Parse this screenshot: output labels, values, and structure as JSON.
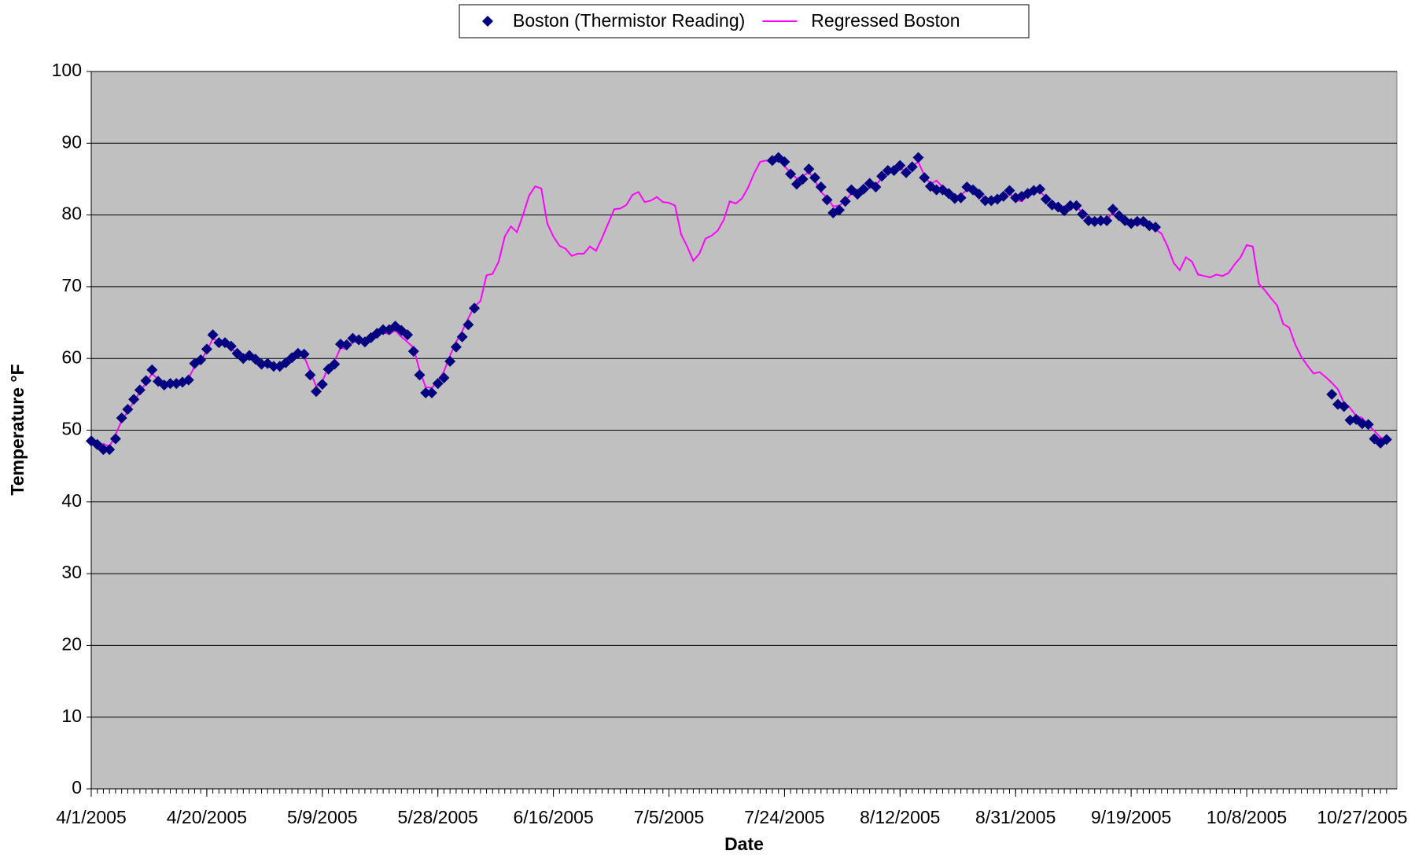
{
  "chart_data": {
    "type": "line",
    "xlabel": "Date",
    "ylabel": "Temperature °F",
    "x": [
      "4/1/2005",
      "4/2/2005",
      "4/3/2005",
      "4/4/2005",
      "4/5/2005",
      "4/6/2005",
      "4/7/2005",
      "4/8/2005",
      "4/9/2005",
      "4/10/2005",
      "4/11/2005",
      "4/12/2005",
      "4/13/2005",
      "4/14/2005",
      "4/15/2005",
      "4/16/2005",
      "4/17/2005",
      "4/18/2005",
      "4/19/2005",
      "4/20/2005",
      "4/21/2005",
      "4/22/2005",
      "4/23/2005",
      "4/24/2005",
      "4/25/2005",
      "4/26/2005",
      "4/27/2005",
      "4/28/2005",
      "4/29/2005",
      "4/30/2005",
      "5/1/2005",
      "5/2/2005",
      "5/3/2005",
      "5/4/2005",
      "5/5/2005",
      "5/6/2005",
      "5/7/2005",
      "5/8/2005",
      "5/9/2005",
      "5/10/2005",
      "5/11/2005",
      "5/12/2005",
      "5/13/2005",
      "5/14/2005",
      "5/15/2005",
      "5/16/2005",
      "5/17/2005",
      "5/18/2005",
      "5/19/2005",
      "5/20/2005",
      "5/21/2005",
      "5/22/2005",
      "5/23/2005",
      "5/24/2005",
      "5/25/2005",
      "5/26/2005",
      "5/27/2005",
      "5/28/2005",
      "5/29/2005",
      "5/30/2005",
      "5/31/2005",
      "6/1/2005",
      "6/2/2005",
      "6/3/2005",
      "6/4/2005",
      "6/5/2005",
      "6/6/2005",
      "6/7/2005",
      "6/8/2005",
      "6/9/2005",
      "6/10/2005",
      "6/11/2005",
      "6/12/2005",
      "6/13/2005",
      "6/14/2005",
      "6/15/2005",
      "6/16/2005",
      "6/17/2005",
      "6/18/2005",
      "6/19/2005",
      "6/20/2005",
      "6/21/2005",
      "6/22/2005",
      "6/23/2005",
      "6/24/2005",
      "6/25/2005",
      "6/26/2005",
      "6/27/2005",
      "6/28/2005",
      "6/29/2005",
      "6/30/2005",
      "7/1/2005",
      "7/2/2005",
      "7/3/2005",
      "7/4/2005",
      "7/5/2005",
      "7/6/2005",
      "7/7/2005",
      "7/8/2005",
      "7/9/2005",
      "7/10/2005",
      "7/11/2005",
      "7/12/2005",
      "7/13/2005",
      "7/14/2005",
      "7/15/2005",
      "7/16/2005",
      "7/17/2005",
      "7/18/2005",
      "7/19/2005",
      "7/20/2005",
      "7/21/2005",
      "7/22/2005",
      "7/23/2005",
      "7/24/2005",
      "7/25/2005",
      "7/26/2005",
      "7/27/2005",
      "7/28/2005",
      "7/29/2005",
      "7/30/2005",
      "7/31/2005",
      "8/1/2005",
      "8/2/2005",
      "8/3/2005",
      "8/4/2005",
      "8/5/2005",
      "8/6/2005",
      "8/7/2005",
      "8/8/2005",
      "8/9/2005",
      "8/10/2005",
      "8/11/2005",
      "8/12/2005",
      "8/13/2005",
      "8/14/2005",
      "8/15/2005",
      "8/16/2005",
      "8/17/2005",
      "8/18/2005",
      "8/19/2005",
      "8/20/2005",
      "8/21/2005",
      "8/22/2005",
      "8/23/2005",
      "8/24/2005",
      "8/25/2005",
      "8/26/2005",
      "8/27/2005",
      "8/28/2005",
      "8/29/2005",
      "8/30/2005",
      "8/31/2005",
      "9/1/2005",
      "9/2/2005",
      "9/3/2005",
      "9/4/2005",
      "9/5/2005",
      "9/6/2005",
      "9/7/2005",
      "9/8/2005",
      "9/9/2005",
      "9/10/2005",
      "9/11/2005",
      "9/12/2005",
      "9/13/2005",
      "9/14/2005",
      "9/15/2005",
      "9/16/2005",
      "9/17/2005",
      "9/18/2005",
      "9/19/2005",
      "9/20/2005",
      "9/21/2005",
      "9/22/2005",
      "9/23/2005",
      "9/24/2005",
      "9/25/2005",
      "9/26/2005",
      "9/27/2005",
      "9/28/2005",
      "9/29/2005",
      "9/30/2005",
      "10/1/2005",
      "10/2/2005",
      "10/3/2005",
      "10/4/2005",
      "10/5/2005",
      "10/6/2005",
      "10/7/2005",
      "10/8/2005",
      "10/9/2005",
      "10/10/2005",
      "10/11/2005",
      "10/12/2005",
      "10/13/2005",
      "10/14/2005",
      "10/15/2005",
      "10/16/2005",
      "10/17/2005",
      "10/18/2005",
      "10/19/2005",
      "10/20/2005",
      "10/21/2005",
      "10/22/2005",
      "10/23/2005",
      "10/24/2005",
      "10/25/2005",
      "10/26/2005",
      "10/27/2005",
      "10/28/2005",
      "10/29/2005",
      "10/30/2005",
      "10/31/2005"
    ],
    "xticks": [
      "4/1/2005",
      "4/20/2005",
      "5/9/2005",
      "5/28/2005",
      "6/16/2005",
      "7/5/2005",
      "7/24/2005",
      "8/12/2005",
      "8/31/2005",
      "9/19/2005",
      "10/8/2005",
      "10/27/2005"
    ],
    "series": [
      {
        "name": "Boston (Thermistor Reading)",
        "color": "#000080",
        "marker": "diamond",
        "values": [
          48.5,
          48,
          47.3,
          47.3,
          48.8,
          51.7,
          52.9,
          54.3,
          55.6,
          56.9,
          58.4,
          56.8,
          56.3,
          56.5,
          56.5,
          56.7,
          57,
          59.3,
          59.8,
          61.3,
          63.3,
          62.2,
          62.2,
          61.7,
          60.7,
          60,
          60.4,
          59.9,
          59.2,
          59.3,
          58.9,
          58.9,
          59.4,
          60.1,
          60.7,
          60.6,
          57.7,
          55.4,
          56.4,
          58.5,
          59.2,
          62,
          61.9,
          62.8,
          62.6,
          62.3,
          62.9,
          63.5,
          64,
          64,
          64.5,
          63.9,
          63.3,
          61,
          57.7,
          55.2,
          55.2,
          56.5,
          57.3,
          59.6,
          61.6,
          63,
          64.7,
          67,
          null,
          null,
          null,
          null,
          null,
          null,
          null,
          null,
          null,
          null,
          null,
          null,
          null,
          null,
          null,
          null,
          null,
          null,
          null,
          null,
          null,
          null,
          null,
          null,
          null,
          null,
          null,
          null,
          null,
          null,
          null,
          null,
          null,
          null,
          null,
          null,
          null,
          null,
          null,
          null,
          null,
          null,
          null,
          null,
          null,
          null,
          null,
          null,
          87.6,
          88,
          87.4,
          85.7,
          84.3,
          85,
          86.4,
          85.2,
          83.9,
          82.1,
          80.3,
          80.7,
          81.9,
          83.5,
          82.9,
          83.6,
          84.4,
          83.9,
          85.4,
          86.2,
          86.2,
          86.9,
          85.9,
          86.7,
          88,
          85.2,
          84,
          83.5,
          83.5,
          83,
          82.3,
          82.4,
          83.9,
          83.5,
          82.9,
          82,
          82,
          82.2,
          82.6,
          83.4,
          82.4,
          82.6,
          83,
          83.4,
          83.6,
          82.2,
          81.4,
          81.1,
          80.6,
          81.3,
          81.3,
          80.1,
          79.2,
          79.1,
          79.2,
          79.2,
          80.8,
          79.9,
          79.2,
          78.8,
          79.1,
          79.1,
          78.5,
          78.3,
          null,
          null,
          null,
          null,
          null,
          null,
          null,
          null,
          null,
          null,
          null,
          null,
          null,
          null,
          null,
          null,
          null,
          null,
          null,
          null,
          null,
          null,
          null,
          null,
          null,
          null,
          null,
          null,
          55,
          53.6,
          53.3,
          51.4,
          51.5,
          50.9,
          50.8,
          48.8,
          48.2,
          48.7
        ]
      },
      {
        "name": "Regressed Boston",
        "color": "#ff00ff",
        "values": [
          48.3,
          48,
          48.1,
          47.7,
          49.4,
          51.3,
          52.6,
          54,
          55.3,
          56.6,
          57.9,
          57.1,
          56.6,
          56.4,
          56.6,
          56.8,
          57.2,
          58.9,
          59.7,
          61,
          62.8,
          62.3,
          62.1,
          61.5,
          60.5,
          60.1,
          60.3,
          59.7,
          59.2,
          59.1,
          58.8,
          59.1,
          59.6,
          60.3,
          60.8,
          60.3,
          58.2,
          56.1,
          56.8,
          58.8,
          59.6,
          61.5,
          61.3,
          62.4,
          62.2,
          62.5,
          63,
          63.3,
          63.6,
          63.4,
          63.9,
          63,
          62.3,
          61.5,
          58.3,
          56,
          55.9,
          56.8,
          58.2,
          60.4,
          62.3,
          63.8,
          65.6,
          67.2,
          68,
          71.6,
          71.8,
          73.5,
          77,
          78.4,
          77.6,
          80,
          82.7,
          84,
          83.7,
          78.8,
          77,
          75.7,
          75.3,
          74.3,
          74.6,
          74.6,
          75.6,
          75,
          76.8,
          78.8,
          80.8,
          80.9,
          81.4,
          82.8,
          83.2,
          81.8,
          82,
          82.5,
          81.8,
          81.7,
          81.3,
          77.3,
          75.6,
          73.6,
          74.6,
          76.7,
          77.1,
          77.8,
          79.3,
          81.9,
          81.6,
          82.3,
          83.8,
          85.8,
          87.4,
          87.6,
          87.2,
          87.7,
          86.8,
          85.9,
          85.1,
          85.4,
          86,
          84.8,
          83.2,
          82.4,
          81.2,
          81.3,
          82,
          83,
          83,
          83.3,
          83.8,
          84.1,
          85.2,
          85.9,
          86.5,
          86.5,
          86.1,
          86.8,
          87.4,
          85.5,
          84.3,
          84.8,
          83.9,
          83.3,
          82.6,
          82.8,
          83.5,
          83.1,
          82.7,
          82.4,
          82.1,
          82.5,
          82.8,
          83.1,
          82.1,
          81.9,
          82.7,
          83.1,
          83.3,
          82.4,
          81.6,
          81.3,
          80.9,
          81.1,
          81.2,
          80.3,
          79.6,
          79.4,
          79.5,
          79.3,
          80.4,
          79.6,
          79.1,
          78.9,
          78.6,
          78.8,
          78.4,
          78,
          77.4,
          75.6,
          73.3,
          72.3,
          74.1,
          73.5,
          71.7,
          71.5,
          71.3,
          71.7,
          71.5,
          71.9,
          73.1,
          74.1,
          75.8,
          75.6,
          70.4,
          69.5,
          68.4,
          67.4,
          64.8,
          64.3,
          61.9,
          60.2,
          59,
          57.9,
          58.1,
          57.4,
          56.6,
          55.7,
          53.8,
          53.1,
          52,
          51.7,
          50.7,
          49.9,
          49,
          48.7
        ]
      }
    ],
    "ylim": [
      0,
      100
    ],
    "yticks": [
      0,
      10,
      20,
      30,
      40,
      50,
      60,
      70,
      80,
      90,
      100
    ],
    "grid": true,
    "legend": "top"
  }
}
